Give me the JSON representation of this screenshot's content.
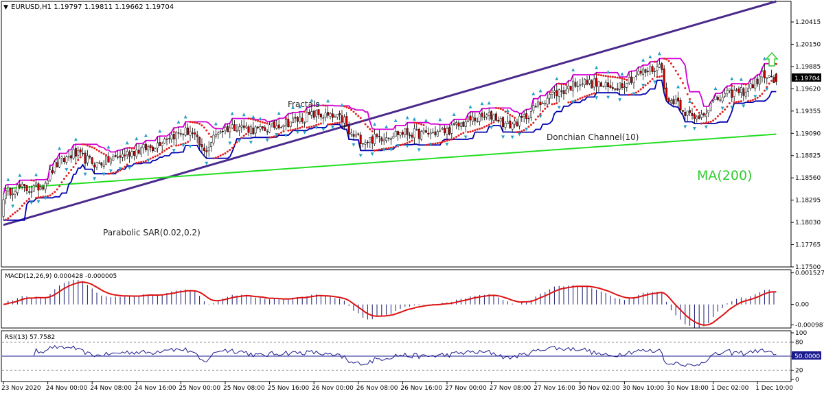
{
  "header": {
    "symbol_line": "EURUSD,H1  1.19797 1.19811 1.19662 1.19704"
  },
  "colors": {
    "background": "#ffffff",
    "frame": "#000000",
    "trendline": "#4b2a8c",
    "donchian_upper": "#d400d4",
    "donchian_lower": "#0000b0",
    "ma200": "#22dd22",
    "sar": "#e02020",
    "fractal": "#27a0c8",
    "candle_bull": "#ffffff",
    "candle_bear": "#cc0000",
    "macd_hist": "#1a1a70",
    "macd_signal": "#dd1111",
    "rsi_line": "#1a1a90",
    "arrow_up": "#33cc33",
    "price_tag_bg": "#000000",
    "rsi_tag_bg": "#1a1a90"
  },
  "annotations": {
    "fractals": "Fractals",
    "donchian": "Donchian Channel(10)",
    "sar": "Parabolic SAR(0.02,0.2)",
    "ma": "MA(200)"
  },
  "price_tag": "1.19704",
  "rsi_tag": "50.0000",
  "chart_data": [
    {
      "type": "candlestick",
      "title": "EURUSD,H1",
      "ohlc_last": {
        "open": 1.19797,
        "high": 1.19811,
        "low": 1.19662,
        "close": 1.19704
      },
      "y_ticks": [
        "1.20415",
        "1.20150",
        "1.19885",
        "1.19620",
        "1.19355",
        "1.19090",
        "1.18825",
        "1.18560",
        "1.18295",
        "1.18030",
        "1.17765",
        "1.17500"
      ],
      "ylim": [
        1.175,
        1.2066
      ],
      "x_ticks": [
        "23 Nov 2020",
        "24 Nov 00:00",
        "24 Nov 08:00",
        "24 Nov 16:00",
        "25 Nov 00:00",
        "25 Nov 08:00",
        "25 Nov 16:00",
        "26 Nov 00:00",
        "26 Nov 08:00",
        "26 Nov 16:00",
        "27 Nov 00:00",
        "27 Nov 08:00",
        "27 Nov 16:00",
        "30 Nov 02:00",
        "30 Nov 10:00",
        "30 Nov 18:00",
        "1 Dec 02:00",
        "1 Dec 10:00"
      ],
      "close_path": [
        [
          0,
          1.1835
        ],
        [
          5,
          1.1845
        ],
        [
          12,
          1.1842
        ],
        [
          17,
          1.1848
        ],
        [
          22,
          1.187
        ],
        [
          30,
          1.1885
        ],
        [
          40,
          1.1872
        ],
        [
          48,
          1.188
        ],
        [
          56,
          1.1888
        ],
        [
          64,
          1.1893
        ],
        [
          70,
          1.1905
        ],
        [
          80,
          1.1912
        ],
        [
          86,
          1.1886
        ],
        [
          92,
          1.1912
        ],
        [
          100,
          1.1918
        ],
        [
          110,
          1.1912
        ],
        [
          118,
          1.192
        ],
        [
          126,
          1.1925
        ],
        [
          134,
          1.1932
        ],
        [
          140,
          1.1928
        ],
        [
          146,
          1.1925
        ],
        [
          148,
          1.1908
        ],
        [
          155,
          1.19
        ],
        [
          162,
          1.1905
        ],
        [
          170,
          1.191
        ],
        [
          180,
          1.1908
        ],
        [
          190,
          1.1912
        ],
        [
          200,
          1.1925
        ],
        [
          210,
          1.193
        ],
        [
          216,
          1.1918
        ],
        [
          222,
          1.1925
        ],
        [
          228,
          1.194
        ],
        [
          234,
          1.1955
        ],
        [
          240,
          1.196
        ],
        [
          246,
          1.197
        ],
        [
          254,
          1.1968
        ],
        [
          260,
          1.1962
        ],
        [
          266,
          1.197
        ],
        [
          272,
          1.198
        ],
        [
          278,
          1.1985
        ],
        [
          282,
          1.199
        ],
        [
          284,
          1.1945
        ],
        [
          288,
          1.195
        ],
        [
          292,
          1.1935
        ],
        [
          296,
          1.1925
        ],
        [
          300,
          1.1935
        ],
        [
          306,
          1.195
        ],
        [
          312,
          1.1957
        ],
        [
          318,
          1.196
        ],
        [
          322,
          1.197
        ],
        [
          326,
          1.198
        ],
        [
          330,
          1.197
        ]
      ],
      "series": [
        {
          "name": "Donchian Channel(10)",
          "kind": "channel"
        },
        {
          "name": "MA(200)",
          "kind": "line",
          "values": [
            [
              0,
              1.1843
            ],
            [
              331,
              1.1908
            ]
          ]
        },
        {
          "name": "Parabolic SAR(0.02,0.2)",
          "kind": "dots"
        },
        {
          "name": "Fractals",
          "kind": "markers"
        }
      ],
      "trendline": [
        [
          0,
          1.18
        ],
        [
          331,
          1.2066
        ]
      ]
    },
    {
      "type": "histogram",
      "title": "MACD(12,26,9) 0.000428 -0.000005",
      "y_ticks": [
        "0.001527",
        "0.00",
        "-0.000987"
      ],
      "ylim": [
        -0.00114,
        0.00168
      ]
    },
    {
      "type": "line",
      "title": "RSI(13) 57.7582",
      "y_ticks": [
        "100",
        "80",
        "50",
        "20",
        "0"
      ],
      "levels": [
        80,
        50,
        20
      ],
      "ylim": [
        0,
        100
      ]
    }
  ]
}
